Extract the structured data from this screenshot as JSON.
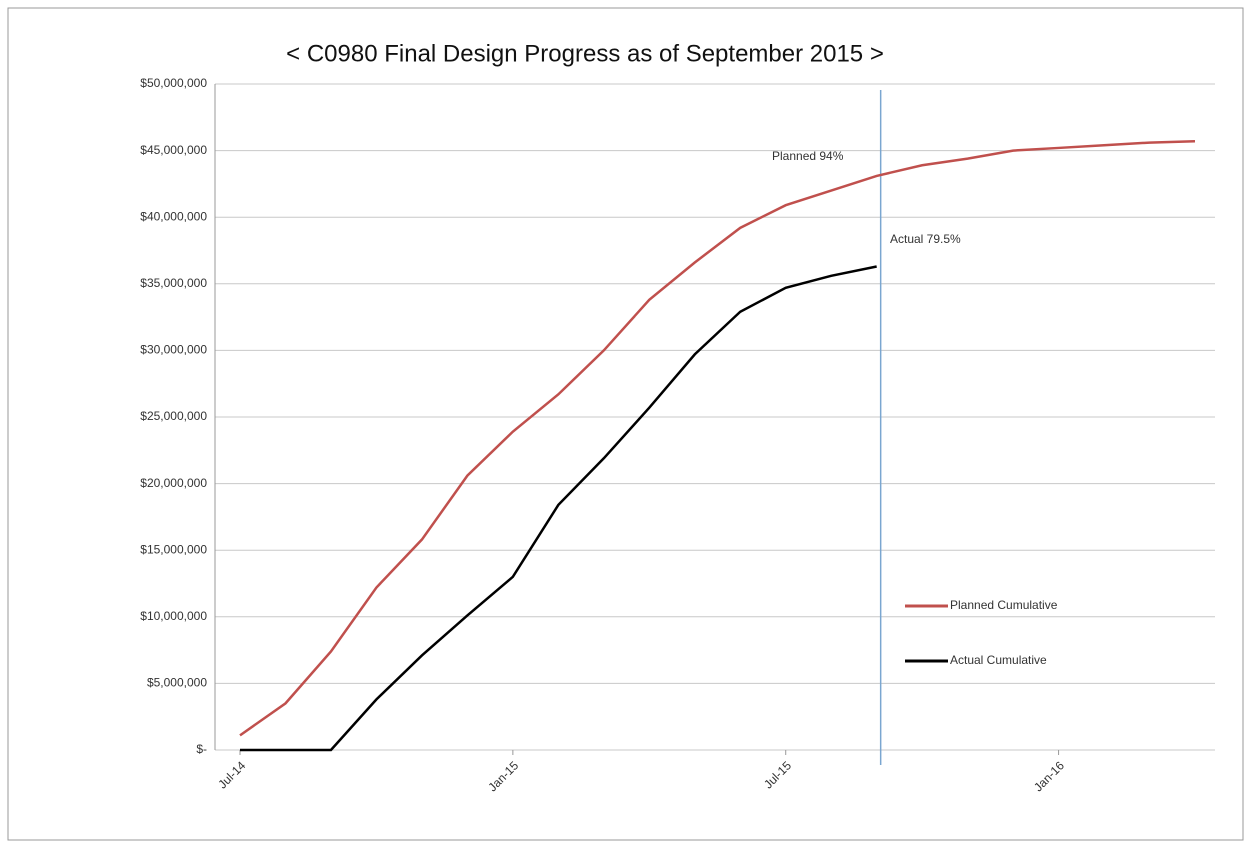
{
  "chart_data": {
    "type": "line",
    "title": "< C0980 Final Design Progress as of September 2015 >",
    "categories": [
      "Jul-14",
      null,
      null,
      null,
      null,
      null,
      "Jan-15",
      null,
      null,
      null,
      null,
      null,
      "Jul-15",
      null,
      null,
      null,
      null,
      null,
      "Jan-16",
      null,
      null,
      null
    ],
    "series": [
      {
        "name": "Planned Cumulative",
        "color": "#c0504d",
        "values": [
          1100000,
          3500000,
          7400000,
          12200000,
          15800000,
          20600000,
          23900000,
          26700000,
          30000000,
          33800000,
          36600000,
          39200000,
          40900000,
          42000000,
          43100000,
          43900000,
          44400000,
          45000000,
          45200000,
          45400000,
          45600000,
          45700000
        ]
      },
      {
        "name": "Actual Cumulative",
        "color": "#000000",
        "values": [
          0,
          0,
          0,
          3800000,
          7100000,
          10100000,
          13000000,
          18400000,
          21900000,
          25700000,
          29700000,
          32900000,
          34700000,
          35600000,
          36300000,
          null,
          null,
          null,
          null,
          null,
          null,
          null
        ]
      }
    ],
    "annotations": [
      "Planned 94%",
      "Actual 79.5%"
    ],
    "ylim": [
      0,
      50000000
    ],
    "yticks": [
      {
        "value": 0,
        "label": "$-"
      },
      {
        "value": 5000000,
        "label": "$5,000,000"
      },
      {
        "value": 10000000,
        "label": "$10,000,000"
      },
      {
        "value": 15000000,
        "label": "$15,000,000"
      },
      {
        "value": 20000000,
        "label": "$20,000,000"
      },
      {
        "value": 25000000,
        "label": "$25,000,000"
      },
      {
        "value": 30000000,
        "label": "$30,000,000"
      },
      {
        "value": 35000000,
        "label": "$35,000,000"
      },
      {
        "value": 40000000,
        "label": "$40,000,000"
      },
      {
        "value": 45000000,
        "label": "$45,000,000"
      },
      {
        "value": 50000000,
        "label": "$50,000,000"
      }
    ],
    "grid": true
  }
}
